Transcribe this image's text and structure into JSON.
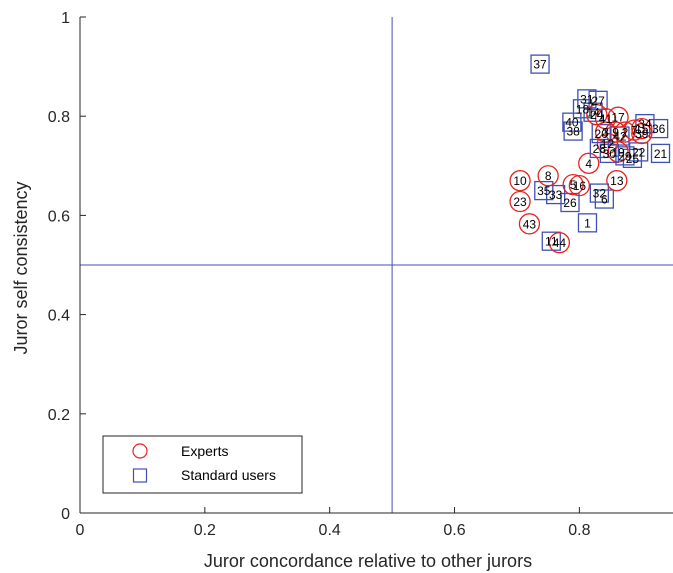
{
  "chart_data": {
    "type": "scatter",
    "title": "",
    "xlabel": "Juror concordance relative to other jurors",
    "ylabel": "Juror self consistency",
    "xlim": [
      0,
      0.95
    ],
    "ylim": [
      0,
      1
    ],
    "xticks": [
      0,
      0.2,
      0.4,
      0.6,
      0.8
    ],
    "yticks": [
      0,
      0.2,
      0.4,
      0.6,
      0.8,
      1
    ],
    "xtick_labels": [
      "0",
      "0.2",
      "0.4",
      "0.6",
      "0.8"
    ],
    "ytick_labels": [
      "0",
      "0.2",
      "0.4",
      "0.6",
      "0.8",
      "1"
    ],
    "reference_lines": {
      "x": 0.5,
      "y": 0.5
    },
    "grid": false,
    "legend_position": "bottom-left",
    "series": [
      {
        "name": "Experts",
        "marker": "circle",
        "color": "#e8231e",
        "points": [
          {
            "label": "4",
            "x": 0.815,
            "y": 0.705
          },
          {
            "label": "8",
            "x": 0.75,
            "y": 0.68
          },
          {
            "label": "10",
            "x": 0.705,
            "y": 0.67
          },
          {
            "label": "23",
            "x": 0.705,
            "y": 0.628
          },
          {
            "label": "43",
            "x": 0.72,
            "y": 0.583
          },
          {
            "label": "44",
            "x": 0.768,
            "y": 0.545
          },
          {
            "label": "13",
            "x": 0.86,
            "y": 0.67
          },
          {
            "label": "5",
            "x": 0.79,
            "y": 0.662
          },
          {
            "label": "16",
            "x": 0.8,
            "y": 0.66
          },
          {
            "label": "17",
            "x": 0.862,
            "y": 0.798
          },
          {
            "label": "41",
            "x": 0.842,
            "y": 0.795
          },
          {
            "label": "24",
            "x": 0.828,
            "y": 0.803
          },
          {
            "label": "3",
            "x": 0.842,
            "y": 0.768
          },
          {
            "label": "9",
            "x": 0.858,
            "y": 0.768
          },
          {
            "label": "2",
            "x": 0.873,
            "y": 0.768
          },
          {
            "label": "7",
            "x": 0.888,
            "y": 0.772
          },
          {
            "label": "15",
            "x": 0.9,
            "y": 0.775
          },
          {
            "label": "39",
            "x": 0.9,
            "y": 0.765
          },
          {
            "label": "12",
            "x": 0.845,
            "y": 0.745
          },
          {
            "label": "19",
            "x": 0.862,
            "y": 0.728
          }
        ]
      },
      {
        "name": "Standard users",
        "marker": "square",
        "color": "#3f51b5",
        "points": [
          {
            "label": "37",
            "x": 0.737,
            "y": 0.905
          },
          {
            "label": "31",
            "x": 0.812,
            "y": 0.835
          },
          {
            "label": "27",
            "x": 0.83,
            "y": 0.832
          },
          {
            "label": "18",
            "x": 0.805,
            "y": 0.815
          },
          {
            "label": "14",
            "x": 0.822,
            "y": 0.808
          },
          {
            "label": "40",
            "x": 0.788,
            "y": 0.788
          },
          {
            "label": "38",
            "x": 0.79,
            "y": 0.77
          },
          {
            "label": "34",
            "x": 0.905,
            "y": 0.785
          },
          {
            "label": "36",
            "x": 0.927,
            "y": 0.775
          },
          {
            "label": "28",
            "x": 0.832,
            "y": 0.735
          },
          {
            "label": "30",
            "x": 0.848,
            "y": 0.725
          },
          {
            "label": "29",
            "x": 0.873,
            "y": 0.72
          },
          {
            "label": "25",
            "x": 0.885,
            "y": 0.715
          },
          {
            "label": "22",
            "x": 0.895,
            "y": 0.728
          },
          {
            "label": "21",
            "x": 0.93,
            "y": 0.725
          },
          {
            "label": "35",
            "x": 0.743,
            "y": 0.65
          },
          {
            "label": "33",
            "x": 0.762,
            "y": 0.642
          },
          {
            "label": "32",
            "x": 0.832,
            "y": 0.645
          },
          {
            "label": "26",
            "x": 0.785,
            "y": 0.626
          },
          {
            "label": "6",
            "x": 0.84,
            "y": 0.633
          },
          {
            "label": "1",
            "x": 0.813,
            "y": 0.585
          },
          {
            "label": "11",
            "x": 0.755,
            "y": 0.548
          },
          {
            "label": "20",
            "x": 0.835,
            "y": 0.765
          },
          {
            "label": "42",
            "x": 0.865,
            "y": 0.76
          }
        ]
      }
    ]
  }
}
